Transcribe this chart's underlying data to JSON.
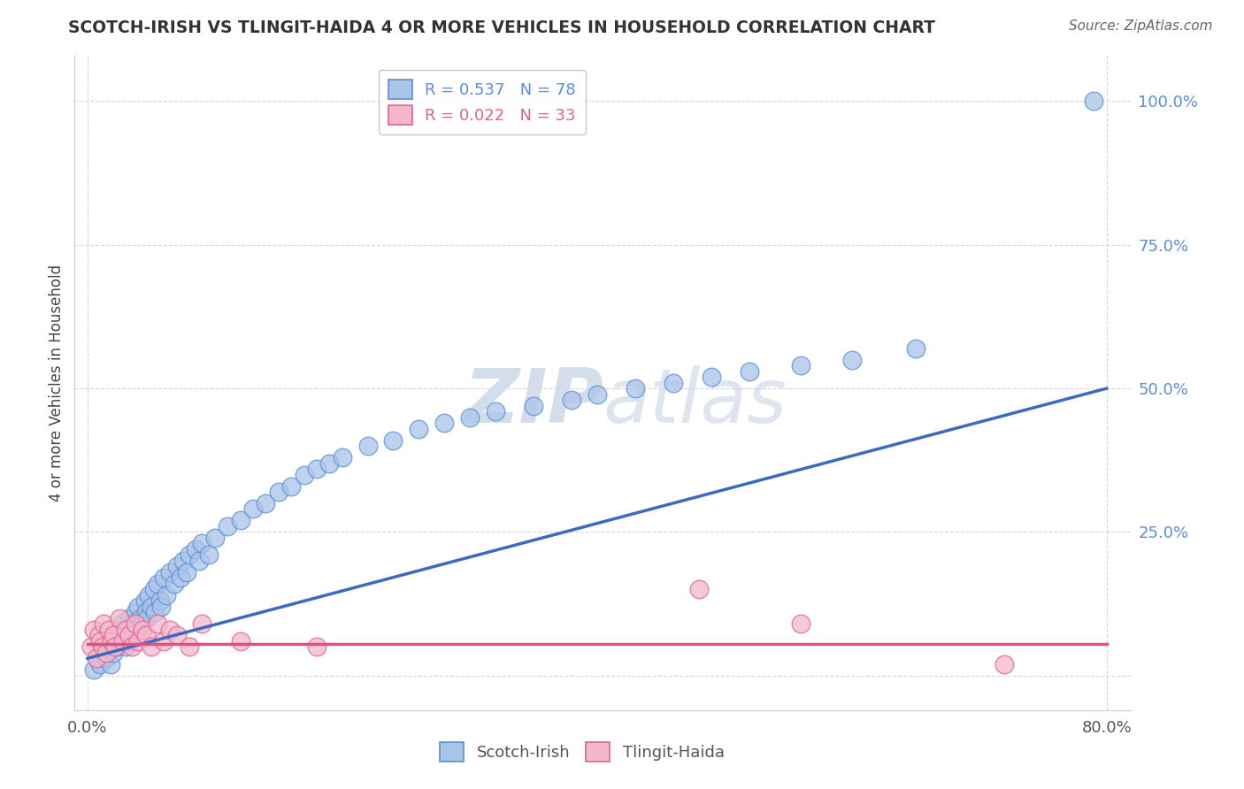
{
  "title": "SCOTCH-IRISH VS TLINGIT-HAIDA 4 OR MORE VEHICLES IN HOUSEHOLD CORRELATION CHART",
  "source": "Source: ZipAtlas.com",
  "ylabel": "4 or more Vehicles in Household",
  "xlim": [
    -0.01,
    0.82
  ],
  "ylim": [
    -0.06,
    1.08
  ],
  "scotch_irish_R": 0.537,
  "scotch_irish_N": 78,
  "tlingit_haida_R": 0.022,
  "tlingit_haida_N": 33,
  "blue_fill": "#aac4e8",
  "blue_edge": "#5b8dd9",
  "pink_fill": "#f4b8cc",
  "pink_edge": "#e06090",
  "blue_line": "#3a6bbf",
  "pink_line": "#e05080",
  "watermark_color": "#d0dae8",
  "grid_color": "#cccccc",
  "bg_color": "#ffffff",
  "ytick_color": "#5b8dd9",
  "title_color": "#333333",
  "source_color": "#666666",
  "si_x": [
    0.005,
    0.008,
    0.01,
    0.012,
    0.013,
    0.015,
    0.016,
    0.018,
    0.019,
    0.02,
    0.022,
    0.023,
    0.025,
    0.026,
    0.027,
    0.028,
    0.03,
    0.031,
    0.032,
    0.033,
    0.035,
    0.036,
    0.038,
    0.039,
    0.04,
    0.042,
    0.043,
    0.045,
    0.046,
    0.047,
    0.048,
    0.05,
    0.052,
    0.053,
    0.055,
    0.057,
    0.058,
    0.06,
    0.062,
    0.065,
    0.068,
    0.07,
    0.073,
    0.075,
    0.078,
    0.08,
    0.085,
    0.088,
    0.09,
    0.095,
    0.1,
    0.11,
    0.12,
    0.13,
    0.14,
    0.15,
    0.16,
    0.17,
    0.18,
    0.19,
    0.2,
    0.22,
    0.24,
    0.26,
    0.28,
    0.3,
    0.32,
    0.35,
    0.38,
    0.4,
    0.43,
    0.46,
    0.49,
    0.52,
    0.56,
    0.6,
    0.65,
    0.79
  ],
  "si_y": [
    0.01,
    0.03,
    0.02,
    0.05,
    0.04,
    0.03,
    0.06,
    0.02,
    0.05,
    0.04,
    0.07,
    0.05,
    0.08,
    0.06,
    0.09,
    0.07,
    0.05,
    0.08,
    0.06,
    0.1,
    0.09,
    0.07,
    0.11,
    0.08,
    0.12,
    0.1,
    0.09,
    0.13,
    0.11,
    0.1,
    0.14,
    0.12,
    0.15,
    0.11,
    0.16,
    0.13,
    0.12,
    0.17,
    0.14,
    0.18,
    0.16,
    0.19,
    0.17,
    0.2,
    0.18,
    0.21,
    0.22,
    0.2,
    0.23,
    0.21,
    0.24,
    0.26,
    0.27,
    0.29,
    0.3,
    0.32,
    0.33,
    0.35,
    0.36,
    0.37,
    0.38,
    0.4,
    0.41,
    0.43,
    0.44,
    0.45,
    0.46,
    0.47,
    0.48,
    0.49,
    0.5,
    0.51,
    0.52,
    0.53,
    0.54,
    0.55,
    0.57,
    1.0
  ],
  "th_x": [
    0.003,
    0.005,
    0.007,
    0.009,
    0.01,
    0.012,
    0.013,
    0.015,
    0.017,
    0.019,
    0.02,
    0.022,
    0.025,
    0.028,
    0.03,
    0.033,
    0.035,
    0.038,
    0.04,
    0.043,
    0.046,
    0.05,
    0.055,
    0.06,
    0.065,
    0.07,
    0.08,
    0.09,
    0.12,
    0.18,
    0.48,
    0.56,
    0.72
  ],
  "th_y": [
    0.05,
    0.08,
    0.03,
    0.07,
    0.06,
    0.05,
    0.09,
    0.04,
    0.08,
    0.06,
    0.07,
    0.05,
    0.1,
    0.06,
    0.08,
    0.07,
    0.05,
    0.09,
    0.06,
    0.08,
    0.07,
    0.05,
    0.09,
    0.06,
    0.08,
    0.07,
    0.05,
    0.09,
    0.06,
    0.05,
    0.15,
    0.09,
    0.02
  ],
  "si_line_x0": 0.0,
  "si_line_x1": 0.8,
  "si_line_y0": 0.03,
  "si_line_y1": 0.5,
  "th_line_x0": 0.0,
  "th_line_x1": 0.8,
  "th_line_y0": 0.055,
  "th_line_y1": 0.055
}
